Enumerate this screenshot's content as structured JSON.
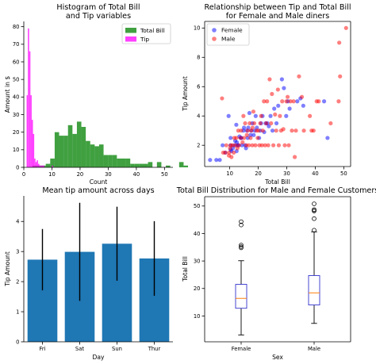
{
  "chart_data": [
    {
      "type": "bar",
      "subtype": "histogram",
      "title": [
        "Histogram of Total Bill",
        "and Tip variables"
      ],
      "xlabel": "Count",
      "ylabel": "Amount in $",
      "xlim": [
        0,
        53
      ],
      "ylim": [
        0,
        83
      ],
      "xticks": [
        0,
        10,
        20,
        30,
        40,
        50
      ],
      "yticks": [
        0,
        10,
        20,
        30,
        40,
        50,
        60,
        70,
        80
      ],
      "legend": "top-right",
      "series": [
        {
          "name": "Total Bill",
          "color": "#008000",
          "alpha": 0.75,
          "bin_start": 3.07,
          "bin_width": 1.58,
          "counts": [
            1,
            1,
            1,
            2,
            5,
            20,
            18,
            18,
            24,
            19,
            26,
            23,
            15,
            13,
            12,
            13,
            7,
            7,
            7,
            5,
            5,
            5,
            2,
            2,
            2,
            2,
            3,
            0,
            3,
            0,
            1,
            0,
            0,
            3,
            1
          ]
        },
        {
          "name": "Tip",
          "color": "#ff00ff",
          "alpha": 0.75,
          "bin_start": 1.0,
          "bin_width": 0.45,
          "counts": [
            41,
            79,
            66,
            41,
            27,
            19,
            5,
            3,
            4,
            2,
            1,
            1,
            1,
            1,
            0,
            0,
            0,
            0,
            0,
            0,
            1
          ]
        }
      ]
    },
    {
      "type": "scatter",
      "title": [
        "Relationship between Tip and Total Bill",
        "for Female and Male diners"
      ],
      "xlabel": "Total Bill",
      "ylabel": "Tip Amount",
      "xlim": [
        1.2,
        52.4
      ],
      "ylim": [
        0.55,
        10.45
      ],
      "xticks": [
        10,
        20,
        30,
        40,
        50
      ],
      "yticks": [
        2,
        4,
        6,
        8,
        10
      ],
      "legend": "top-left",
      "series": [
        {
          "name": "Female",
          "color": "#0000ff",
          "alpha": 0.5,
          "points": [
            [
              3.1,
              1.0
            ],
            [
              5.3,
              1.0
            ],
            [
              6.5,
              1.0
            ],
            [
              7.5,
              2.0
            ],
            [
              8.4,
              1.5
            ],
            [
              9.6,
              4.0
            ],
            [
              10.3,
              1.7
            ],
            [
              10.3,
              2.0
            ],
            [
              10.6,
              1.6
            ],
            [
              10.3,
              2.5
            ],
            [
              11.1,
              1.8
            ],
            [
              11.6,
              2.0
            ],
            [
              11.9,
              2.3
            ],
            [
              12.4,
              1.6
            ],
            [
              12.5,
              2.2
            ],
            [
              12.7,
              2.0
            ],
            [
              12.3,
              3.4
            ],
            [
              13.0,
              2.0
            ],
            [
              13.4,
              2.6
            ],
            [
              13.9,
              2.5
            ],
            [
              14.1,
              2.5
            ],
            [
              14.3,
              2.0
            ],
            [
              14.8,
              3.0
            ],
            [
              15.0,
              3.2
            ],
            [
              15.4,
              2.0
            ],
            [
              15.7,
              1.8
            ],
            [
              16.0,
              3.0
            ],
            [
              16.3,
              2.5
            ],
            [
              16.5,
              3.2
            ],
            [
              16.9,
              4.2
            ],
            [
              17.3,
              2.7
            ],
            [
              17.6,
              3.0
            ],
            [
              17.9,
              3.5
            ],
            [
              18.4,
              2.7
            ],
            [
              18.8,
              3.0
            ],
            [
              19.1,
              4.0
            ],
            [
              19.5,
              3.2
            ],
            [
              20.3,
              2.5
            ],
            [
              20.7,
              3.0
            ],
            [
              21.0,
              3.5
            ],
            [
              21.5,
              4.0
            ],
            [
              22.1,
              2.9
            ],
            [
              22.6,
              3.5
            ],
            [
              23.2,
              3.5
            ],
            [
              23.7,
              3.3
            ],
            [
              24.3,
              4.0
            ],
            [
              25.0,
              3.0
            ],
            [
              25.6,
              4.5
            ],
            [
              26.4,
              3.5
            ],
            [
              27.0,
              4.7
            ],
            [
              28.3,
              6.5
            ],
            [
              29.0,
              5.9
            ],
            [
              29.8,
              4.0
            ],
            [
              30.4,
              5.0
            ],
            [
              31.0,
              4.5
            ],
            [
              33.7,
              5.0
            ],
            [
              34.8,
              5.2
            ],
            [
              35.8,
              4.7
            ],
            [
              43.1,
              5.0
            ],
            [
              44.3,
              2.5
            ]
          ]
        },
        {
          "name": "Male",
          "color": "#ff0000",
          "alpha": 0.5,
          "points": [
            [
              7.3,
              5.2
            ],
            [
              7.7,
              1.5
            ],
            [
              8.5,
              1.5
            ],
            [
              8.8,
              2.0
            ],
            [
              9.7,
              1.3
            ],
            [
              9.8,
              1.5
            ],
            [
              10.1,
              1.8
            ],
            [
              10.3,
              2.0
            ],
            [
              10.6,
              1.2
            ],
            [
              11.0,
              2.0
            ],
            [
              11.4,
              1.5
            ],
            [
              11.6,
              2.5
            ],
            [
              12.0,
              2.0
            ],
            [
              12.3,
              2.5
            ],
            [
              12.7,
              1.8
            ],
            [
              13.0,
              3.0
            ],
            [
              13.3,
              2.0
            ],
            [
              13.8,
              2.5
            ],
            [
              14.0,
              3.0
            ],
            [
              14.5,
              2.2
            ],
            [
              14.8,
              4.0
            ],
            [
              15.0,
              2.5
            ],
            [
              15.4,
              3.5
            ],
            [
              15.8,
              2.0
            ],
            [
              16.0,
              2.7
            ],
            [
              16.3,
              3.0
            ],
            [
              16.7,
              2.0
            ],
            [
              17.0,
              3.5
            ],
            [
              17.3,
              2.5
            ],
            [
              17.5,
              3.0
            ],
            [
              17.9,
              2.0
            ],
            [
              18.0,
              3.2
            ],
            [
              18.3,
              4.3
            ],
            [
              18.6,
              3.5
            ],
            [
              19.0,
              2.0
            ],
            [
              19.4,
              3.0
            ],
            [
              19.8,
              2.5
            ],
            [
              20.1,
              3.0
            ],
            [
              20.4,
              2.0
            ],
            [
              20.7,
              3.5
            ],
            [
              21.0,
              4.0
            ],
            [
              21.3,
              2.0
            ],
            [
              21.6,
              3.0
            ],
            [
              22.0,
              5.0
            ],
            [
              22.4,
              2.0
            ],
            [
              22.8,
              3.5
            ],
            [
              23.1,
              5.0
            ],
            [
              23.5,
              2.0
            ],
            [
              24.0,
              6.5
            ],
            [
              24.5,
              3.5
            ],
            [
              24.8,
              5.5
            ],
            [
              25.3,
              2.0
            ],
            [
              25.9,
              4.1
            ],
            [
              26.3,
              3.0
            ],
            [
              26.9,
              5.8
            ],
            [
              27.2,
              2.0
            ],
            [
              27.6,
              4.0
            ],
            [
              28.0,
              3.0
            ],
            [
              28.4,
              5.0
            ],
            [
              28.8,
              3.1
            ],
            [
              29.3,
              2.0
            ],
            [
              29.9,
              5.0
            ],
            [
              30.3,
              5.3
            ],
            [
              30.7,
              2.0
            ],
            [
              31.3,
              5.0
            ],
            [
              31.8,
              3.0
            ],
            [
              32.4,
              5.0
            ],
            [
              32.8,
              1.2
            ],
            [
              33.2,
              3.0
            ],
            [
              34.3,
              6.7
            ],
            [
              35.3,
              5.3
            ],
            [
              36.0,
              3.0
            ],
            [
              38.1,
              4.0
            ],
            [
              38.7,
              3.0
            ],
            [
              39.4,
              3.0
            ],
            [
              40.5,
              5.0
            ],
            [
              41.2,
              5.0
            ],
            [
              45.4,
              3.5
            ],
            [
              48.2,
              5.0
            ],
            [
              48.4,
              9.0
            ],
            [
              48.7,
              6.7
            ],
            [
              50.8,
              10.0
            ]
          ]
        }
      ]
    },
    {
      "type": "bar",
      "title": "Mean tip amount across days",
      "xlabel": "Day",
      "ylabel": "Tip Amount",
      "categories": [
        "Fri",
        "Sat",
        "Sun",
        "Thur"
      ],
      "values": [
        2.73,
        2.99,
        3.26,
        2.77
      ],
      "error": [
        1.02,
        1.63,
        1.23,
        1.24
      ],
      "color": "#1f77b4",
      "ylim": [
        0,
        4.85
      ],
      "yticks": [
        0,
        1,
        2,
        3,
        4
      ]
    },
    {
      "type": "box",
      "title": "Total Bill Distribution for Male and Female Customers",
      "xlabel": "Sex",
      "ylabel": "Total Bill",
      "categories": [
        "Female",
        "Male"
      ],
      "ylim": [
        0.6,
        53.4
      ],
      "yticks": [
        10,
        20,
        30,
        40,
        50
      ],
      "boxes": [
        {
          "whislo": 3.1,
          "q1": 12.8,
          "med": 16.4,
          "q3": 21.5,
          "whishi": 30.1,
          "fliers": [
            34.8,
            35.2,
            35.8,
            43.1,
            44.3
          ]
        },
        {
          "whislo": 7.3,
          "q1": 14.0,
          "med": 18.4,
          "q3": 24.7,
          "whishi": 40.6,
          "fliers": [
            41.2,
            45.4,
            48.2,
            48.3,
            48.7,
            50.8
          ]
        }
      ]
    }
  ]
}
